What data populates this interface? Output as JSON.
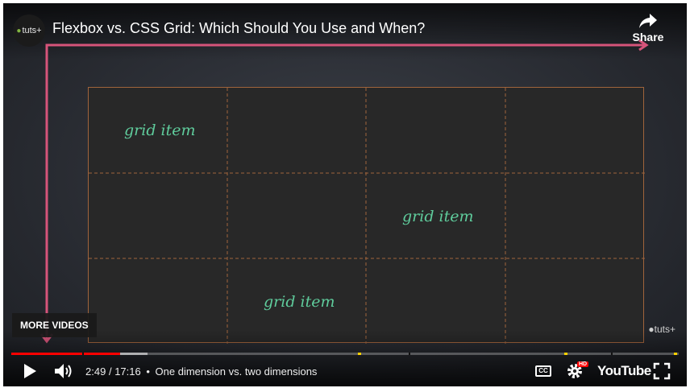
{
  "video": {
    "title": "Flexbox vs. CSS Grid: Which Should You Use and When?",
    "channel_logo_text": "tuts+",
    "share_label": "Share",
    "grid_items": [
      "grid item",
      "grid item",
      "grid item"
    ],
    "watermark": "tuts+",
    "more_videos_label": "MORE VIDEOS"
  },
  "controls": {
    "current_time": "2:49",
    "duration": "17:16",
    "separator": "•",
    "chapter_title": "One dimension vs. two dimensions",
    "cc_label": "CC",
    "hd_badge": "HD",
    "youtube_logo": "YouTube",
    "played_fraction": 0.163,
    "buffered_fraction": 0.204
  },
  "icons": [
    "play-icon",
    "volume-icon",
    "captions-icon",
    "settings-icon",
    "fullscreen-icon",
    "share-icon"
  ],
  "colors": {
    "accent": "#ff0000",
    "grid_text": "#5fcc9c",
    "grid_border": "#a0643c",
    "arrow": "#d6547a"
  }
}
